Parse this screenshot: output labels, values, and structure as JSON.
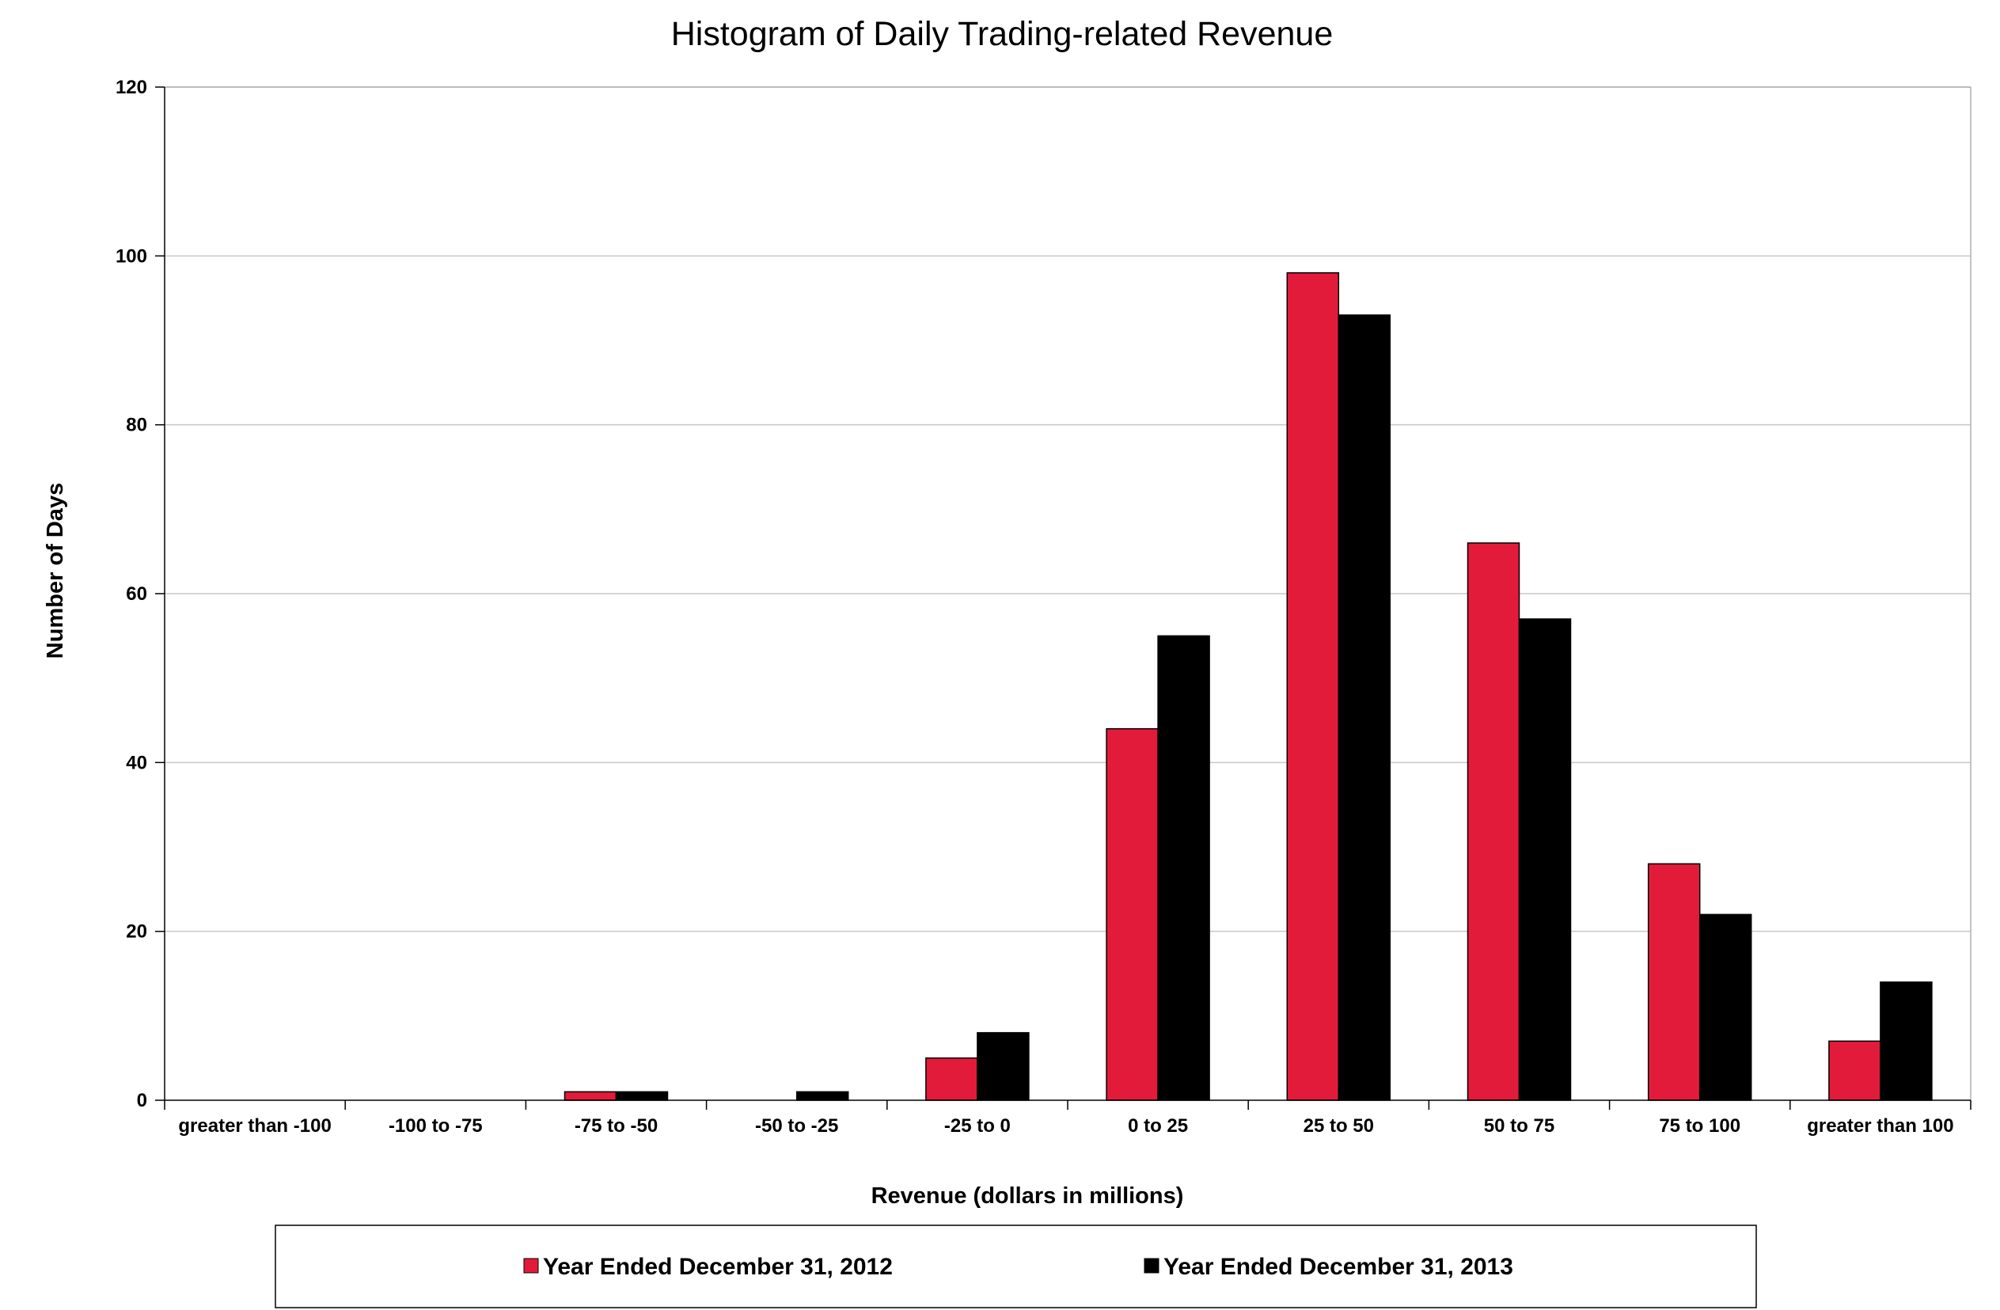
{
  "chart_data": {
    "type": "bar",
    "title": "Histogram of Daily Trading-related Revenue",
    "xlabel": "Revenue (dollars in millions)",
    "ylabel": "Number of Days",
    "ylim": [
      0,
      120
    ],
    "yticks": [
      0,
      20,
      40,
      60,
      80,
      100,
      120
    ],
    "grid": true,
    "legend_position": "bottom",
    "categories": [
      "greater than -100",
      "-100 to -75",
      "-75 to -50",
      "-50 to -25",
      "-25 to 0",
      "0 to 25",
      "25 to 50",
      "50 to 75",
      "75 to 100",
      "greater than 100"
    ],
    "series": [
      {
        "name": "Year Ended December 31, 2012",
        "color": "#e31b3a",
        "values": [
          0,
          0,
          1,
          0,
          5,
          44,
          98,
          66,
          28,
          7
        ]
      },
      {
        "name": "Year Ended December 31, 2013",
        "color": "#000000",
        "values": [
          0,
          0,
          1,
          1,
          8,
          55,
          93,
          57,
          22,
          14
        ]
      }
    ]
  }
}
